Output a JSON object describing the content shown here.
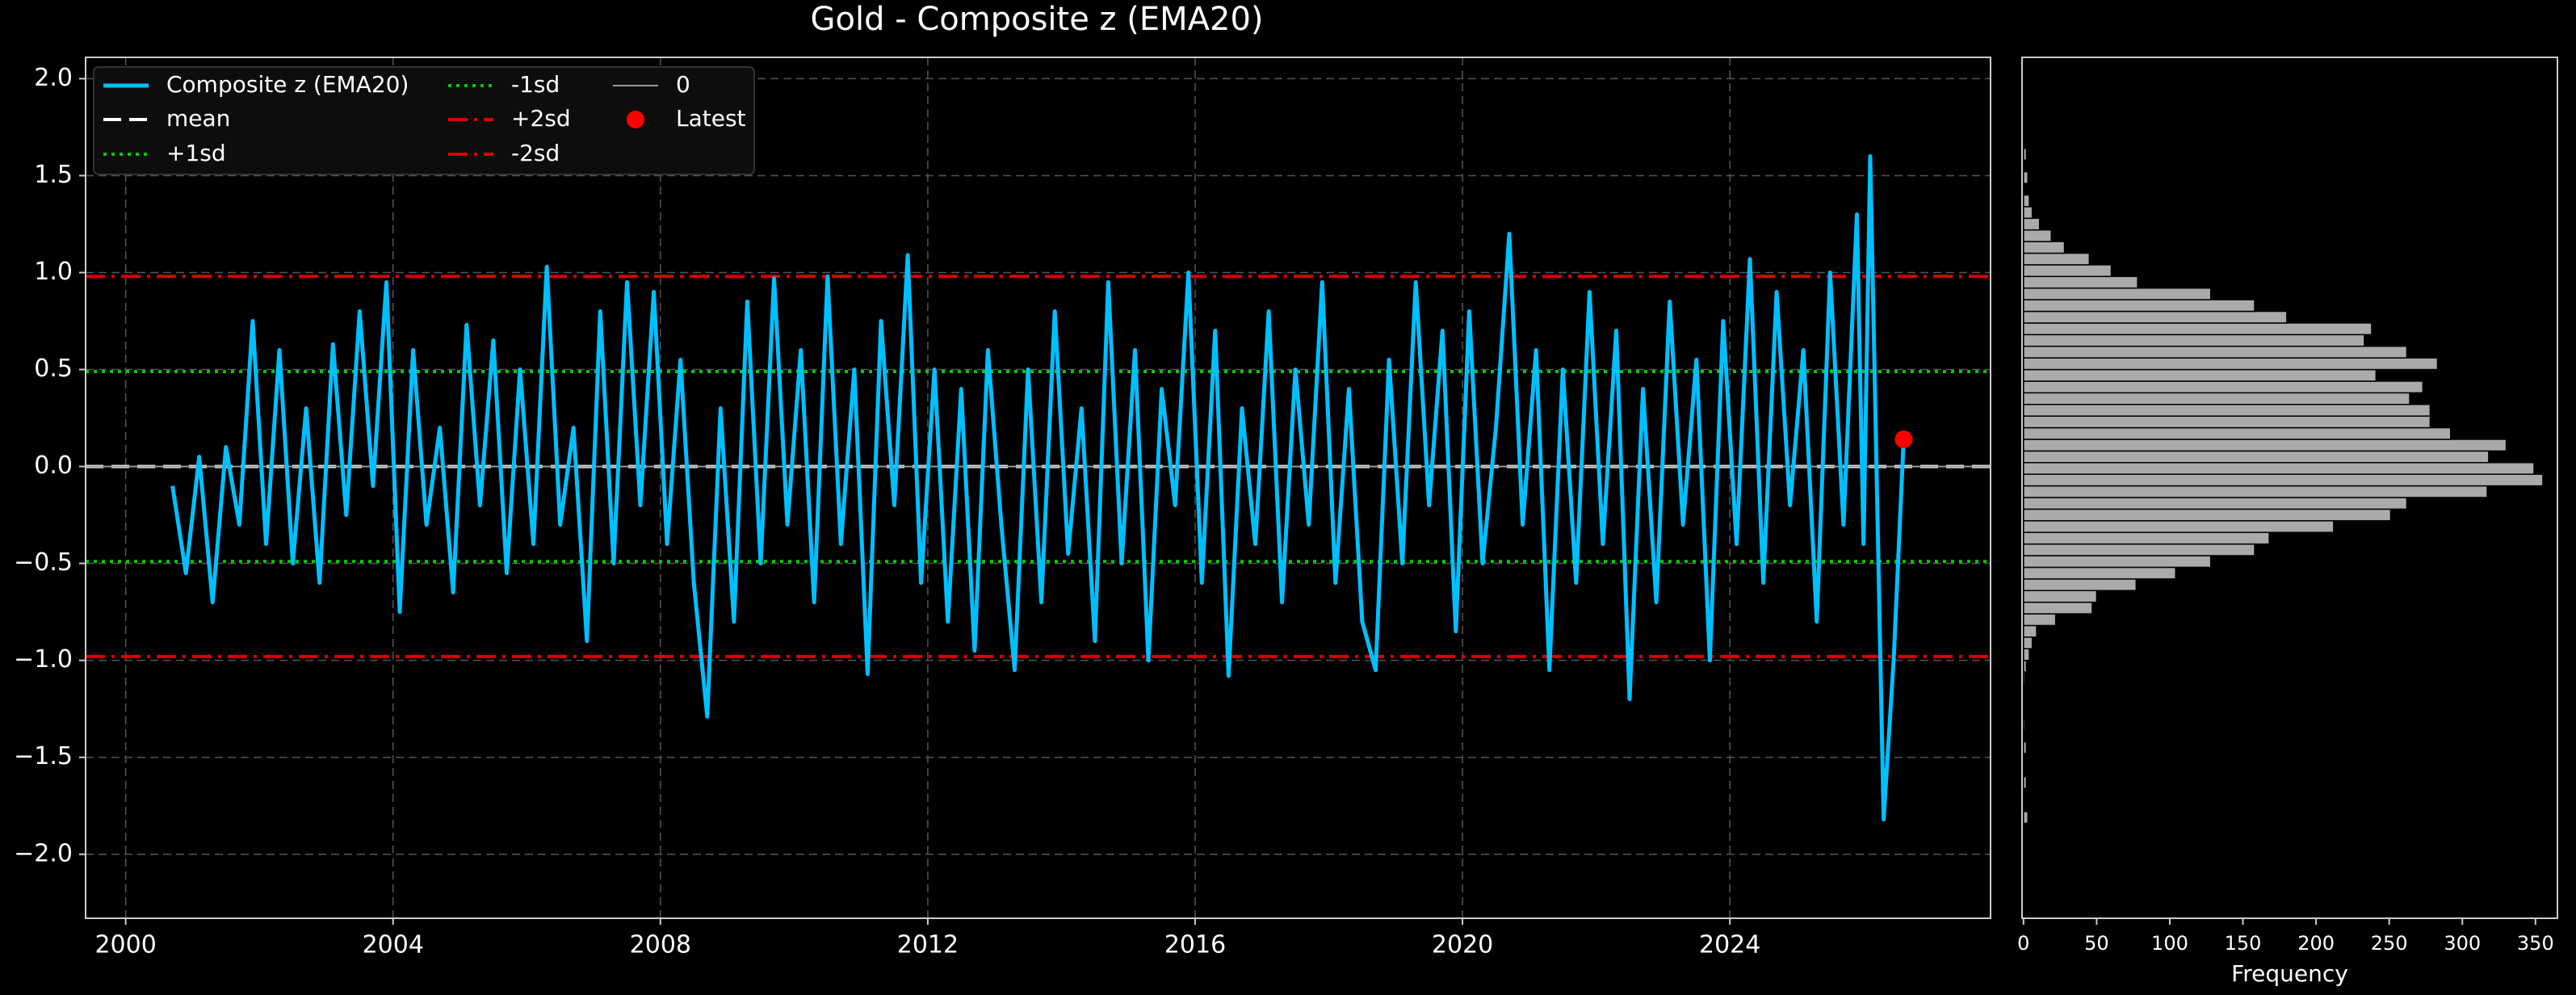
{
  "chart_data": [
    {
      "type": "line",
      "title": "Gold - Composite z (EMA20)",
      "x": [
        2000.7,
        2000.9,
        2001.1,
        2001.3,
        2001.5,
        2001.7,
        2001.9,
        2002.1,
        2002.3,
        2002.5,
        2002.7,
        2002.9,
        2003.1,
        2003.3,
        2003.5,
        2003.7,
        2003.9,
        2004.1,
        2004.3,
        2004.5,
        2004.7,
        2004.9,
        2005.1,
        2005.3,
        2005.5,
        2005.7,
        2005.9,
        2006.1,
        2006.3,
        2006.5,
        2006.7,
        2006.9,
        2007.1,
        2007.3,
        2007.5,
        2007.7,
        2007.9,
        2008.1,
        2008.3,
        2008.5,
        2008.7,
        2008.9,
        2009.1,
        2009.3,
        2009.5,
        2009.7,
        2009.9,
        2010.1,
        2010.3,
        2010.5,
        2010.7,
        2010.9,
        2011.1,
        2011.3,
        2011.5,
        2011.7,
        2011.9,
        2012.1,
        2012.3,
        2012.5,
        2012.7,
        2012.9,
        2013.1,
        2013.3,
        2013.5,
        2013.7,
        2013.9,
        2014.1,
        2014.3,
        2014.5,
        2014.7,
        2014.9,
        2015.1,
        2015.3,
        2015.5,
        2015.7,
        2015.9,
        2016.1,
        2016.3,
        2016.5,
        2016.7,
        2016.9,
        2017.1,
        2017.3,
        2017.5,
        2017.7,
        2017.9,
        2018.1,
        2018.3,
        2018.5,
        2018.7,
        2018.9,
        2019.1,
        2019.3,
        2019.5,
        2019.7,
        2019.9,
        2020.1,
        2020.3,
        2020.5,
        2020.7,
        2020.9,
        2021.1,
        2021.3,
        2021.5,
        2021.7,
        2021.9,
        2022.1,
        2022.3,
        2022.5,
        2022.7,
        2022.9,
        2023.1,
        2023.3,
        2023.5,
        2023.7,
        2023.9,
        2024.1,
        2024.3,
        2024.5,
        2024.7,
        2024.9,
        2025.1,
        2025.3,
        2025.5,
        2025.7,
        2025.9,
        2026.0,
        2026.1,
        2026.3,
        2026.45,
        2026.6
      ],
      "series": [
        {
          "name": "Composite z (EMA20)",
          "color": "#00bfff",
          "values": [
            -0.1,
            -0.55,
            0.05,
            -0.7,
            0.1,
            -0.3,
            0.75,
            -0.4,
            0.6,
            -0.5,
            0.3,
            -0.6,
            0.63,
            -0.25,
            0.8,
            -0.1,
            0.95,
            -0.75,
            0.6,
            -0.3,
            0.2,
            -0.65,
            0.73,
            -0.2,
            0.65,
            -0.55,
            0.5,
            -0.4,
            1.03,
            -0.3,
            0.2,
            -0.9,
            0.8,
            -0.5,
            0.95,
            -0.2,
            0.9,
            -0.4,
            0.55,
            -0.6,
            -1.29,
            0.3,
            -0.8,
            0.85,
            -0.5,
            0.97,
            -0.3,
            0.6,
            -0.7,
            0.98,
            -0.4,
            0.5,
            -1.07,
            0.75,
            -0.2,
            1.09,
            -0.6,
            0.5,
            -0.8,
            0.4,
            -0.95,
            0.6,
            -0.3,
            -1.05,
            0.5,
            -0.7,
            0.8,
            -0.45,
            0.3,
            -0.9,
            0.95,
            -0.5,
            0.6,
            -1.0,
            0.4,
            -0.2,
            1.0,
            -0.6,
            0.7,
            -1.08,
            0.3,
            -0.4,
            0.8,
            -0.7,
            0.5,
            -0.3,
            0.95,
            -0.6,
            0.4,
            -0.8,
            -1.05,
            0.55,
            -0.5,
            0.95,
            -0.2,
            0.7,
            -0.85,
            0.8,
            -0.5,
            0.2,
            1.2,
            -0.3,
            0.6,
            -1.05,
            0.5,
            -0.6,
            0.9,
            -0.4,
            0.7,
            -1.2,
            0.4,
            -0.7,
            0.85,
            -0.3,
            0.55,
            -1.0,
            0.75,
            -0.4,
            1.07,
            -0.6,
            0.9,
            -0.2,
            0.6,
            -0.8,
            1.0,
            -0.3,
            1.3,
            -0.4,
            1.6,
            -1.82,
            -1.0,
            0.14
          ]
        }
      ],
      "hlines": [
        {
          "name": "mean",
          "value": 0.0,
          "color": "#ffffff",
          "style": "dashed"
        },
        {
          "name": "+1sd",
          "value": 0.49,
          "color": "#00cc00",
          "style": "dotted"
        },
        {
          "name": "-1sd",
          "value": -0.49,
          "color": "#00cc00",
          "style": "dotted"
        },
        {
          "name": "+2sd",
          "value": 0.98,
          "color": "#dd0000",
          "style": "dashdot"
        },
        {
          "name": "-2sd",
          "value": -0.98,
          "color": "#dd0000",
          "style": "dashdot"
        },
        {
          "name": "0",
          "value": 0,
          "color": "#999999",
          "style": "solid"
        }
      ],
      "points": [
        {
          "name": "Latest",
          "x": 2026.6,
          "y": 0.14,
          "color": "#ff0000"
        }
      ],
      "xlim": [
        1999.4,
        2027.9
      ],
      "xticks": [
        2000,
        2004,
        2008,
        2012,
        2016,
        2020,
        2024
      ],
      "ylim": [
        -2.33,
        2.11
      ],
      "yticks": [
        {
          "value": -2,
          "label": "−2.0"
        },
        {
          "value": -1.5,
          "label": "−1.5"
        },
        {
          "value": -1,
          "label": "−1.0"
        },
        {
          "value": -0.5,
          "label": "−0.5"
        },
        {
          "value": 0,
          "label": "0.0"
        },
        {
          "value": 0.5,
          "label": "0.5"
        },
        {
          "value": 1,
          "label": "1.0"
        },
        {
          "value": 1.5,
          "label": "1.5"
        },
        {
          "value": 2,
          "label": "2.0"
        }
      ],
      "grid": true,
      "legend": "upper left"
    },
    {
      "type": "histogram",
      "orientation": "horizontal",
      "xlabel": "Frequency",
      "color": "#aaaaaa",
      "bins": [
        -1.84,
        -1.78,
        -1.72,
        -1.66,
        -1.6,
        -1.54,
        -1.48,
        -1.42,
        -1.36,
        -1.3,
        -1.24,
        -1.18,
        -1.12,
        -1.06,
        -1,
        -0.94,
        -0.88,
        -0.82,
        -0.76,
        -0.7,
        -0.64,
        -0.58,
        -0.52,
        -0.46,
        -0.4,
        -0.34,
        -0.28,
        -0.22,
        -0.16,
        -0.1,
        -0.04,
        0.02,
        0.08,
        0.14,
        0.2,
        0.26,
        0.32,
        0.38,
        0.44,
        0.5,
        0.56,
        0.62,
        0.68,
        0.74,
        0.8,
        0.86,
        0.92,
        0.98,
        1.04,
        1.1,
        1.16,
        1.22,
        1.28,
        1.34,
        1.4,
        1.46,
        1.52,
        1.58,
        1.64
      ],
      "counts": [
        3,
        0,
        0,
        2,
        0,
        0,
        2,
        0,
        1,
        0,
        0,
        0,
        1,
        2,
        4,
        6,
        9,
        22,
        47,
        50,
        77,
        104,
        128,
        158,
        168,
        212,
        251,
        262,
        317,
        355,
        349,
        318,
        330,
        292,
        278,
        278,
        264,
        273,
        241,
        283,
        262,
        233,
        238,
        180,
        158,
        128,
        78,
        60,
        45,
        28,
        19,
        11,
        6,
        4,
        0,
        3,
        0,
        2
      ],
      "xlim": [
        -1,
        365
      ],
      "xticks": [
        0,
        50,
        100,
        150,
        200,
        250,
        300,
        350
      ]
    }
  ]
}
